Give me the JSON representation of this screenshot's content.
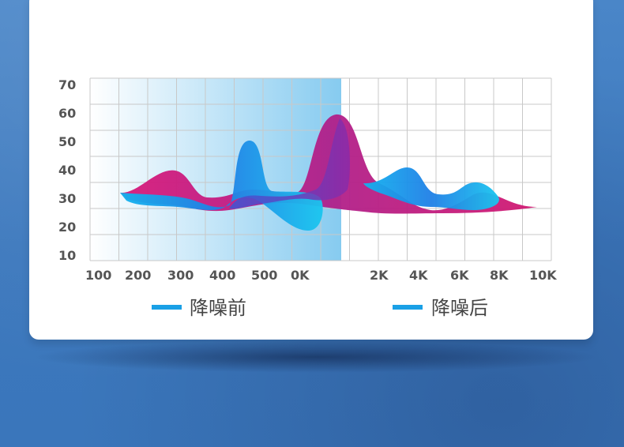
{
  "chart_data": {
    "type": "area",
    "title": "",
    "xlabel": "",
    "ylabel": "",
    "y_ticks": [
      "70",
      "60",
      "50",
      "40",
      "30",
      "20",
      "10"
    ],
    "x_ticks": [
      "100",
      "200",
      "300",
      "400",
      "500",
      "0K",
      "2K",
      "4K",
      "6K",
      "8K",
      "10K"
    ],
    "ylim": [
      10,
      70
    ],
    "grid": true,
    "legend_position": "bottom",
    "highlight_band": {
      "from": "100",
      "to": "0K"
    },
    "series": [
      {
        "name": "降噪前",
        "color": "#c2157a"
      },
      {
        "name": "降噪后",
        "color": "#1aa0e6"
      }
    ]
  },
  "colors": {
    "background": "#3f7cc0",
    "card": "#ffffff",
    "grid": "#c8c8c8",
    "legend_marker": "#1aa0e6",
    "band_start": "#ffffff",
    "band_end": "#87ccf0"
  }
}
